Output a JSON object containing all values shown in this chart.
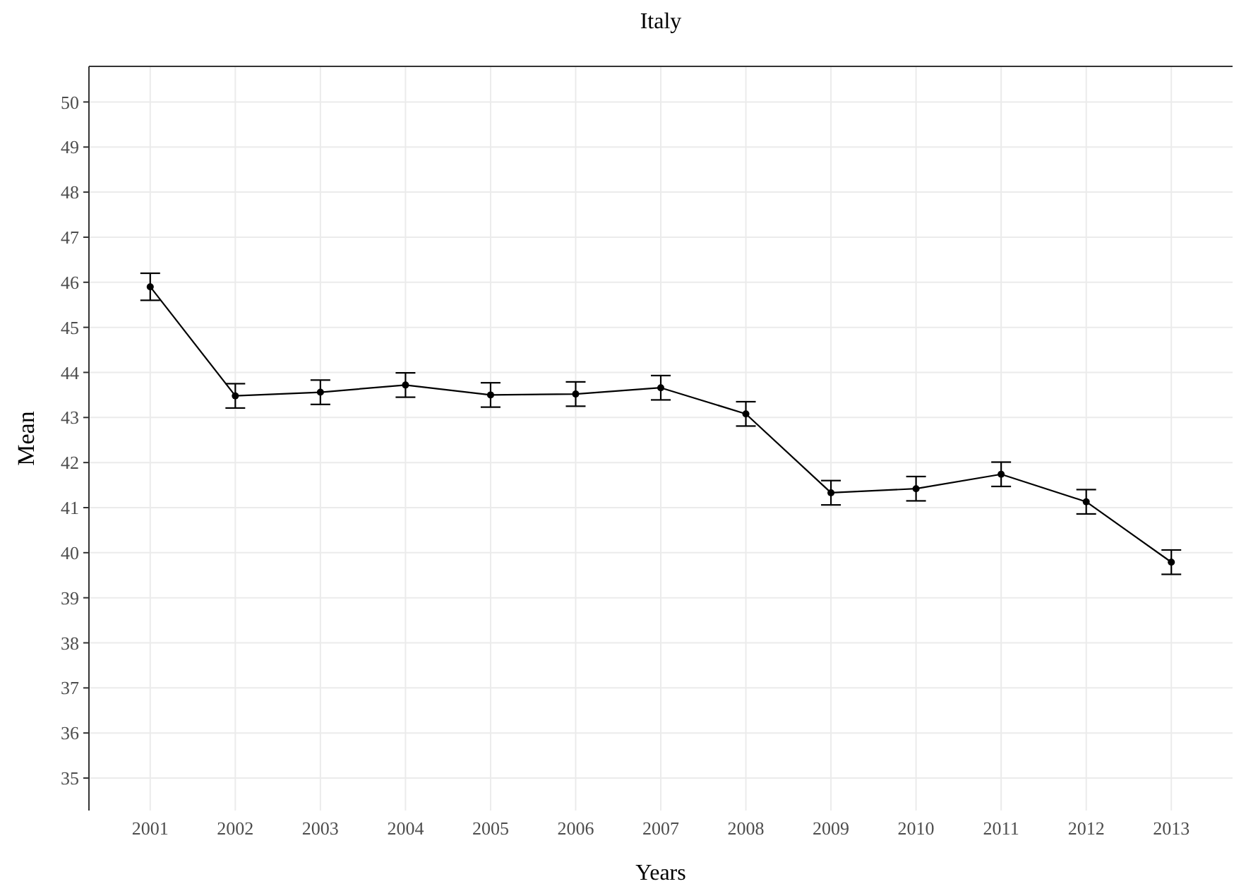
{
  "chart_data": {
    "type": "line",
    "title": "Italy",
    "xlabel": "Years",
    "ylabel": "Mean",
    "categories": [
      "2001",
      "2002",
      "2003",
      "2004",
      "2005",
      "2006",
      "2007",
      "2008",
      "2009",
      "2010",
      "2011",
      "2012",
      "2013"
    ],
    "series": [
      {
        "color": "#000000",
        "values": [
          45.9,
          43.48,
          43.56,
          43.72,
          43.5,
          43.52,
          43.66,
          43.08,
          41.33,
          41.42,
          41.74,
          41.13,
          39.79
        ],
        "errors": [
          0.3,
          0.27,
          0.27,
          0.27,
          0.27,
          0.27,
          0.27,
          0.27,
          0.27,
          0.27,
          0.27,
          0.27,
          0.27
        ]
      }
    ],
    "ylim": [
      34.28,
      50.79
    ],
    "yticks": [
      35,
      36,
      37,
      38,
      39,
      40,
      41,
      42,
      43,
      44,
      45,
      46,
      47,
      48,
      49,
      50
    ],
    "grid": true,
    "marker": "circle",
    "line_style": "solid"
  }
}
